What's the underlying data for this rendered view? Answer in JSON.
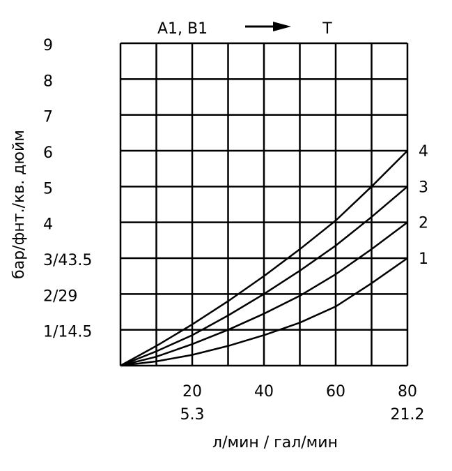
{
  "chart_data": {
    "type": "line",
    "title_from": "A1,  B1",
    "title_to": "T",
    "xlabel": "л/мин / гал/мин",
    "ylabel": "бар/фнт./кв. дюйм",
    "x": [
      0,
      10,
      20,
      30,
      40,
      50,
      60,
      70,
      80
    ],
    "series": [
      {
        "name": "1",
        "color": "#000000",
        "values": [
          0,
          0.12,
          0.3,
          0.55,
          0.85,
          1.2,
          1.65,
          2.3,
          3
        ]
      },
      {
        "name": "2",
        "color": "#000000",
        "values": [
          0,
          0.25,
          0.6,
          1.0,
          1.45,
          1.95,
          2.55,
          3.25,
          4
        ]
      },
      {
        "name": "3",
        "color": "#000000",
        "values": [
          0,
          0.4,
          0.85,
          1.4,
          2.0,
          2.65,
          3.35,
          4.15,
          5
        ]
      },
      {
        "name": "4",
        "color": "#000000",
        "values": [
          0,
          0.55,
          1.15,
          1.8,
          2.5,
          3.25,
          4.05,
          5.0,
          6
        ]
      }
    ],
    "xlim": [
      0,
      80
    ],
    "ylim": [
      0,
      9
    ],
    "xticks": [
      20,
      40,
      60,
      80
    ],
    "xticks_secondary": [
      {
        "value": 20,
        "label": "5.3"
      },
      {
        "value": 80,
        "label": "21.2"
      }
    ],
    "xgrid": [
      0,
      10,
      20,
      30,
      40,
      50,
      60,
      70,
      80
    ],
    "yticks": [
      {
        "value": 0,
        "label": ""
      },
      {
        "value": 1,
        "label": "1/14.5"
      },
      {
        "value": 2,
        "label": "2/29"
      },
      {
        "value": 3,
        "label": "3/43.5"
      },
      4,
      {
        "value": 5,
        "label": "5"
      },
      6,
      7,
      8,
      9
    ],
    "grid": true
  }
}
